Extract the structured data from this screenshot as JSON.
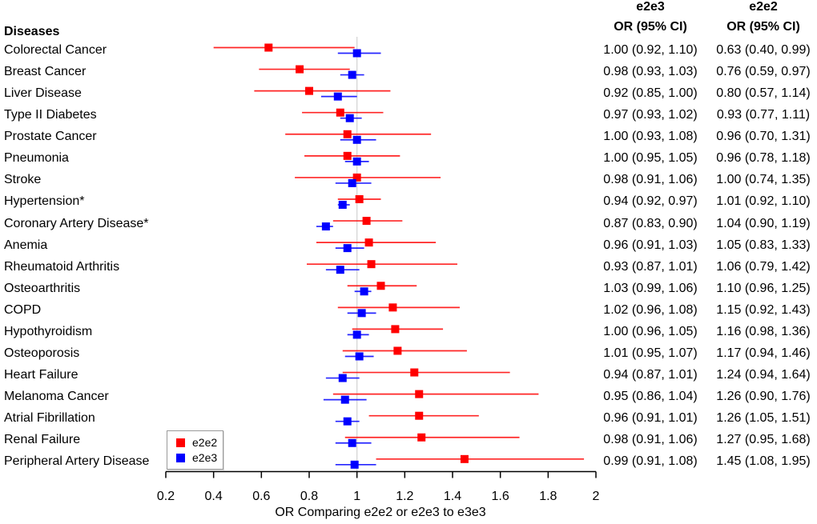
{
  "header": {
    "diseases_label": "Diseases",
    "col1": {
      "genotype": "e2e3",
      "subtitle": "OR (95% CI)"
    },
    "col2": {
      "genotype": "e2e2",
      "subtitle": "OR (95% CI)"
    }
  },
  "legend": {
    "items": [
      {
        "label": "e2e2",
        "color": "#FF0000"
      },
      {
        "label": "e2e3",
        "color": "#0000FF"
      }
    ]
  },
  "axis": {
    "title": "OR Comparing e2e2 or e2e3 to e3e3",
    "tick_labels": [
      "0.2",
      "0.4",
      "0.6",
      "0.8",
      "1",
      "1.2",
      "1.4",
      "1.6",
      "1.8",
      "2"
    ],
    "tick_values": [
      0.2,
      0.4,
      0.6,
      0.8,
      1,
      1.2,
      1.4,
      1.6,
      1.8,
      2
    ],
    "range": [
      0.2,
      2
    ]
  },
  "colors": {
    "e2e2": "#FF0000",
    "e2e3": "#0000FF",
    "reference_line": "#D6D6D6",
    "axis": "#000000",
    "text": "#000000"
  },
  "chart_data": {
    "type": "forest",
    "title": "",
    "xlabel": "OR Comparing e2e2 or e2e3 to e3e3",
    "xlim": [
      0.2,
      2
    ],
    "xticks": [
      0.2,
      0.4,
      0.6,
      0.8,
      1,
      1.2,
      1.4,
      1.6,
      1.8,
      2
    ],
    "reference_line": 1.0,
    "legend_position": "bottom-left-inside",
    "series_names": [
      "e2e2",
      "e2e3"
    ],
    "rows": [
      {
        "disease": "Colorectal Cancer",
        "e2e3": {
          "or": 1.0,
          "lo": 0.92,
          "hi": 1.1,
          "text": "1.00 (0.92, 1.10)"
        },
        "e2e2": {
          "or": 0.63,
          "lo": 0.4,
          "hi": 0.99,
          "text": "0.63 (0.40, 0.99)"
        }
      },
      {
        "disease": "Breast Cancer",
        "e2e3": {
          "or": 0.98,
          "lo": 0.93,
          "hi": 1.03,
          "text": "0.98 (0.93, 1.03)"
        },
        "e2e2": {
          "or": 0.76,
          "lo": 0.59,
          "hi": 0.97,
          "text": "0.76 (0.59, 0.97)"
        }
      },
      {
        "disease": "Liver Disease",
        "e2e3": {
          "or": 0.92,
          "lo": 0.85,
          "hi": 1.0,
          "text": "0.92 (0.85, 1.00)"
        },
        "e2e2": {
          "or": 0.8,
          "lo": 0.57,
          "hi": 1.14,
          "text": "0.80 (0.57, 1.14)"
        }
      },
      {
        "disease": "Type II Diabetes",
        "e2e3": {
          "or": 0.97,
          "lo": 0.93,
          "hi": 1.02,
          "text": "0.97 (0.93, 1.02)"
        },
        "e2e2": {
          "or": 0.93,
          "lo": 0.77,
          "hi": 1.11,
          "text": "0.93 (0.77, 1.11)"
        }
      },
      {
        "disease": "Prostate Cancer",
        "e2e3": {
          "or": 1.0,
          "lo": 0.93,
          "hi": 1.08,
          "text": "1.00 (0.93, 1.08)"
        },
        "e2e2": {
          "or": 0.96,
          "lo": 0.7,
          "hi": 1.31,
          "text": "0.96 (0.70, 1.31)"
        }
      },
      {
        "disease": "Pneumonia",
        "e2e3": {
          "or": 1.0,
          "lo": 0.95,
          "hi": 1.05,
          "text": "1.00 (0.95, 1.05)"
        },
        "e2e2": {
          "or": 0.96,
          "lo": 0.78,
          "hi": 1.18,
          "text": "0.96 (0.78, 1.18)"
        }
      },
      {
        "disease": "Stroke",
        "e2e3": {
          "or": 0.98,
          "lo": 0.91,
          "hi": 1.06,
          "text": "0.98 (0.91, 1.06)"
        },
        "e2e2": {
          "or": 1.0,
          "lo": 0.74,
          "hi": 1.35,
          "text": "1.00 (0.74, 1.35)"
        }
      },
      {
        "disease": "Hypertension*",
        "e2e3": {
          "or": 0.94,
          "lo": 0.92,
          "hi": 0.97,
          "text": "0.94 (0.92, 0.97)"
        },
        "e2e2": {
          "or": 1.01,
          "lo": 0.92,
          "hi": 1.1,
          "text": "1.01 (0.92, 1.10)"
        }
      },
      {
        "disease": "Coronary Artery Disease*",
        "e2e3": {
          "or": 0.87,
          "lo": 0.83,
          "hi": 0.9,
          "text": "0.87 (0.83, 0.90)"
        },
        "e2e2": {
          "or": 1.04,
          "lo": 0.9,
          "hi": 1.19,
          "text": "1.04 (0.90, 1.19)"
        }
      },
      {
        "disease": "Anemia",
        "e2e3": {
          "or": 0.96,
          "lo": 0.91,
          "hi": 1.03,
          "text": "0.96 (0.91, 1.03)"
        },
        "e2e2": {
          "or": 1.05,
          "lo": 0.83,
          "hi": 1.33,
          "text": "1.05 (0.83, 1.33)"
        }
      },
      {
        "disease": "Rheumatoid Arthritis",
        "e2e3": {
          "or": 0.93,
          "lo": 0.87,
          "hi": 1.01,
          "text": "0.93 (0.87, 1.01)"
        },
        "e2e2": {
          "or": 1.06,
          "lo": 0.79,
          "hi": 1.42,
          "text": "1.06 (0.79, 1.42)"
        }
      },
      {
        "disease": "Osteoarthritis",
        "e2e3": {
          "or": 1.03,
          "lo": 0.99,
          "hi": 1.06,
          "text": "1.03 (0.99, 1.06)"
        },
        "e2e2": {
          "or": 1.1,
          "lo": 0.96,
          "hi": 1.25,
          "text": "1.10 (0.96, 1.25)"
        }
      },
      {
        "disease": "COPD",
        "e2e3": {
          "or": 1.02,
          "lo": 0.96,
          "hi": 1.08,
          "text": "1.02 (0.96, 1.08)"
        },
        "e2e2": {
          "or": 1.15,
          "lo": 0.92,
          "hi": 1.43,
          "text": "1.15 (0.92, 1.43)"
        }
      },
      {
        "disease": "Hypothyroidism",
        "e2e3": {
          "or": 1.0,
          "lo": 0.96,
          "hi": 1.05,
          "text": "1.00 (0.96, 1.05)"
        },
        "e2e2": {
          "or": 1.16,
          "lo": 0.98,
          "hi": 1.36,
          "text": "1.16 (0.98, 1.36)"
        }
      },
      {
        "disease": "Osteoporosis",
        "e2e3": {
          "or": 1.01,
          "lo": 0.95,
          "hi": 1.07,
          "text": "1.01 (0.95, 1.07)"
        },
        "e2e2": {
          "or": 1.17,
          "lo": 0.94,
          "hi": 1.46,
          "text": "1.17 (0.94, 1.46)"
        }
      },
      {
        "disease": "Heart Failure",
        "e2e3": {
          "or": 0.94,
          "lo": 0.87,
          "hi": 1.01,
          "text": "0.94 (0.87, 1.01)"
        },
        "e2e2": {
          "or": 1.24,
          "lo": 0.94,
          "hi": 1.64,
          "text": "1.24 (0.94, 1.64)"
        }
      },
      {
        "disease": "Melanoma Cancer",
        "e2e3": {
          "or": 0.95,
          "lo": 0.86,
          "hi": 1.04,
          "text": "0.95 (0.86, 1.04)"
        },
        "e2e2": {
          "or": 1.26,
          "lo": 0.9,
          "hi": 1.76,
          "text": "1.26 (0.90, 1.76)"
        }
      },
      {
        "disease": "Atrial Fibrillation",
        "e2e3": {
          "or": 0.96,
          "lo": 0.91,
          "hi": 1.01,
          "text": "0.96 (0.91, 1.01)"
        },
        "e2e2": {
          "or": 1.26,
          "lo": 1.05,
          "hi": 1.51,
          "text": "1.26 (1.05, 1.51)"
        }
      },
      {
        "disease": "Renal Failure",
        "e2e3": {
          "or": 0.98,
          "lo": 0.91,
          "hi": 1.06,
          "text": "0.98 (0.91, 1.06)"
        },
        "e2e2": {
          "or": 1.27,
          "lo": 0.95,
          "hi": 1.68,
          "text": "1.27 (0.95, 1.68)"
        }
      },
      {
        "disease": "Peripheral Artery Disease",
        "e2e3": {
          "or": 0.99,
          "lo": 0.91,
          "hi": 1.08,
          "text": "0.99 (0.91, 1.08)"
        },
        "e2e2": {
          "or": 1.45,
          "lo": 1.08,
          "hi": 1.95,
          "text": "1.45 (1.08, 1.95)"
        }
      }
    ]
  }
}
